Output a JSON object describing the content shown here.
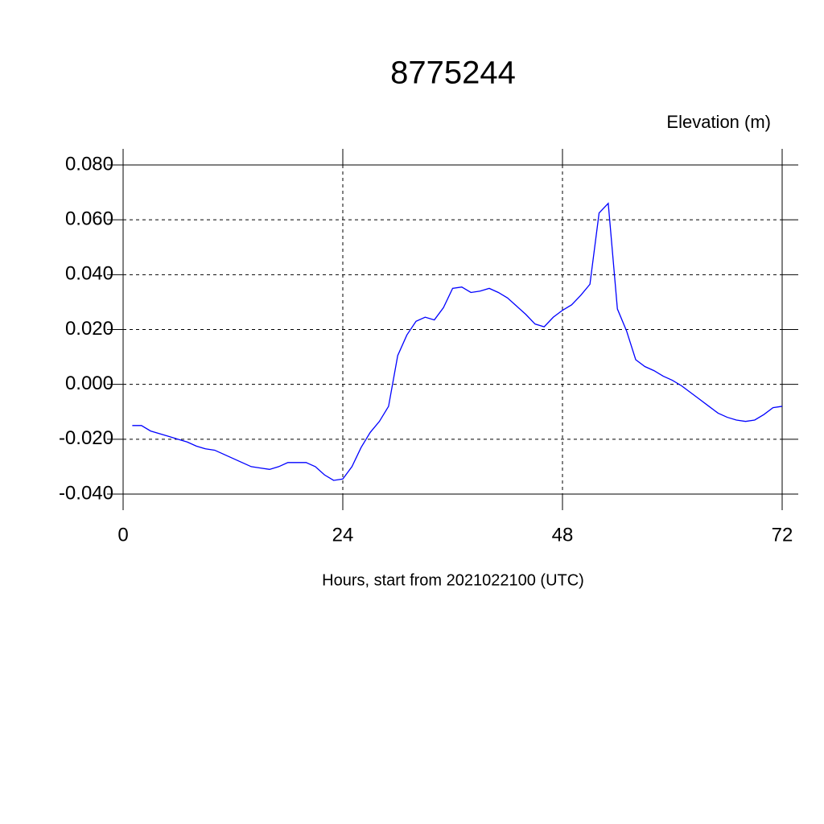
{
  "chart_data": {
    "type": "line",
    "title": "8775244",
    "ylabel": "Elevation (m)",
    "xlabel": "Hours, start from 2021022100 (UTC)",
    "x": [
      1,
      2,
      3,
      4,
      5,
      6,
      7,
      8,
      9,
      10,
      11,
      12,
      13,
      14,
      15,
      16,
      17,
      18,
      19,
      20,
      21,
      22,
      23,
      24,
      25,
      26,
      27,
      28,
      29,
      30,
      31,
      32,
      33,
      34,
      35,
      36,
      37,
      38,
      39,
      40,
      41,
      42,
      43,
      44,
      45,
      46,
      47,
      48,
      49,
      50,
      51,
      52,
      53,
      54,
      55,
      56,
      57,
      58,
      59,
      60,
      61,
      62,
      63,
      64,
      65,
      66,
      67,
      68,
      69,
      70,
      71,
      72
    ],
    "series": [
      {
        "color": "#0000ff",
        "values": [
          -0.015,
          -0.015,
          -0.017,
          -0.018,
          -0.019,
          -0.02,
          -0.021,
          -0.0225,
          -0.0235,
          -0.024,
          -0.0255,
          -0.027,
          -0.0285,
          -0.03,
          -0.0305,
          -0.031,
          -0.03,
          -0.0285,
          -0.0285,
          -0.0285,
          -0.03,
          -0.033,
          -0.035,
          -0.0345,
          -0.03,
          -0.023,
          -0.0175,
          -0.0135,
          -0.008,
          0.0105,
          0.018,
          0.023,
          0.0245,
          0.0235,
          0.028,
          0.035,
          0.0355,
          0.0335,
          0.034,
          0.035,
          0.0335,
          0.0315,
          0.0285,
          0.0255,
          0.022,
          0.021,
          0.0245,
          0.027,
          0.029,
          0.0325,
          0.0365,
          0.0625,
          0.066,
          0.0275,
          0.0195,
          0.009,
          0.0065,
          0.005,
          0.003,
          0.0015,
          -0.0005,
          -0.003,
          -0.0055,
          -0.008,
          -0.0105,
          -0.012,
          -0.013,
          -0.0135,
          -0.013,
          -0.011,
          -0.0085,
          -0.008
        ]
      }
    ],
    "xlim": [
      0,
      72
    ],
    "xticks": [
      0,
      24,
      48,
      72
    ],
    "ylim": [
      -0.04,
      0.08
    ],
    "yticks": [
      {
        "value": -0.04,
        "label": "-0.040"
      },
      {
        "value": -0.02,
        "label": "-0.020"
      },
      {
        "value": 0,
        "label": "0.000"
      },
      {
        "value": 0.02,
        "label": "0.020"
      },
      {
        "value": 0.04,
        "label": "0.040"
      },
      {
        "value": 0.06,
        "label": "0.060"
      },
      {
        "value": 0.08,
        "label": "0.080"
      }
    ],
    "grid": true
  }
}
